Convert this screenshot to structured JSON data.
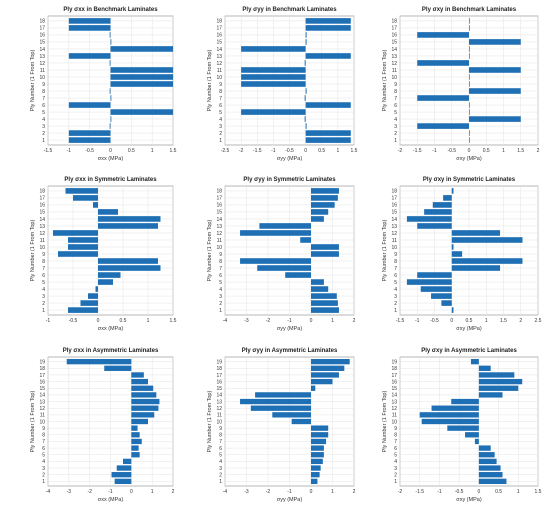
{
  "figure": {
    "ylabel": "Ply Number (1 From Top)",
    "grid": true,
    "bar_color": "#1f6fb4"
  },
  "chart_data": [
    {
      "type": "bar",
      "orientation": "horizontal",
      "title": "Ply σxx in Benchmark Laminates",
      "xlabel": "σxx (MPa)",
      "ylabel": "Ply Number (1 From Top)",
      "plies": [
        1,
        2,
        3,
        4,
        5,
        6,
        7,
        8,
        9,
        10,
        11,
        12,
        13,
        14,
        15,
        16,
        17,
        18
      ],
      "values": [
        -1,
        -1,
        -0.02,
        0.02,
        1.5,
        -1,
        0.02,
        -0.02,
        1.5,
        1.5,
        1.5,
        -0.02,
        -1,
        1.5,
        0.02,
        -0.02,
        -1,
        -1
      ],
      "xlim": [
        -1.5,
        1.5
      ],
      "xticks": [
        -1.5,
        -1,
        -0.5,
        0,
        0.5,
        1,
        1.5
      ]
    },
    {
      "type": "bar",
      "orientation": "horizontal",
      "title": "Ply σyy in Benchmark Laminates",
      "xlabel": "σyy (MPa)",
      "ylabel": "Ply Number (1 From Top)",
      "plies": [
        1,
        2,
        3,
        4,
        5,
        6,
        7,
        8,
        9,
        10,
        11,
        12,
        13,
        14,
        15,
        16,
        17,
        18
      ],
      "values": [
        1.4,
        1.4,
        0.03,
        -0.03,
        -2,
        1.4,
        -0.03,
        0.03,
        -2,
        -2,
        -2,
        -0.03,
        1.4,
        -2,
        0.03,
        0.03,
        1.4,
        1.4
      ],
      "xlim": [
        -2.5,
        1.5
      ],
      "xticks": [
        -2.5,
        -2,
        -1.5,
        -1,
        -0.5,
        0,
        0.5,
        1,
        1.5
      ]
    },
    {
      "type": "bar",
      "orientation": "horizontal",
      "title": "Ply σxy in Benchmark Laminates",
      "xlabel": "σxy (MPa)",
      "ylabel": "Ply Number (1 From Top)",
      "plies": [
        1,
        2,
        3,
        4,
        5,
        6,
        7,
        8,
        9,
        10,
        11,
        12,
        13,
        14,
        15,
        16,
        17,
        18
      ],
      "values": [
        0.02,
        0.02,
        -1.5,
        1.5,
        0.02,
        0.02,
        -1.5,
        1.5,
        0.02,
        0.02,
        1.5,
        -1.5,
        0.02,
        0.02,
        1.5,
        -1.5,
        0.02,
        0.02
      ],
      "xlim": [
        -2,
        2
      ],
      "xticks": [
        -2,
        -1.5,
        -1,
        -0.5,
        0,
        0.5,
        1,
        1.5,
        2
      ]
    },
    {
      "type": "bar",
      "orientation": "horizontal",
      "title": "Ply σxx in Symmetric Laminates",
      "xlabel": "σxx (MPa)",
      "ylabel": "Ply Number (1 From Top)",
      "plies": [
        1,
        2,
        3,
        4,
        5,
        6,
        7,
        8,
        9,
        10,
        11,
        12,
        13,
        14,
        15,
        16,
        17,
        18
      ],
      "values": [
        -0.6,
        -0.35,
        -0.2,
        -0.05,
        0.3,
        0.45,
        1.25,
        1.2,
        -0.8,
        -0.6,
        -0.6,
        -0.9,
        1.2,
        1.25,
        0.4,
        -0.1,
        -0.5,
        -0.65
      ],
      "xlim": [
        -1,
        1.5
      ],
      "xticks": [
        -1,
        -0.5,
        0,
        0.5,
        1,
        1.5
      ]
    },
    {
      "type": "bar",
      "orientation": "horizontal",
      "title": "Ply σyy in Symmetric Laminates",
      "xlabel": "σyy (MPa)",
      "ylabel": "Ply Number (1 From Top)",
      "plies": [
        1,
        2,
        3,
        4,
        5,
        6,
        7,
        8,
        9,
        10,
        11,
        12,
        13,
        14,
        15,
        16,
        17,
        18
      ],
      "values": [
        1.3,
        1.25,
        1.2,
        0.8,
        0.6,
        -1.2,
        -2.5,
        -3.3,
        1.3,
        1.3,
        -0.5,
        -3.3,
        -2.4,
        0.6,
        0.8,
        1.1,
        1.25,
        1.3
      ],
      "xlim": [
        -4,
        2
      ],
      "xticks": [
        -4,
        -3,
        -2,
        -1,
        0,
        1,
        2
      ]
    },
    {
      "type": "bar",
      "orientation": "horizontal",
      "title": "Ply σxy in Symmetric Laminates",
      "xlabel": "σxy (MPa)",
      "ylabel": "Ply Number (1 From Top)",
      "plies": [
        1,
        2,
        3,
        4,
        5,
        6,
        7,
        8,
        9,
        10,
        11,
        12,
        13,
        14,
        15,
        16,
        17,
        18
      ],
      "values": [
        0.05,
        -0.3,
        -0.6,
        -0.9,
        -1.3,
        -1.0,
        1.4,
        2.05,
        0.3,
        0.05,
        2.05,
        1.4,
        -1.0,
        -1.3,
        -0.8,
        -0.55,
        -0.25,
        0.05
      ],
      "xlim": [
        -1.5,
        2.5
      ],
      "xticks": [
        -1.5,
        -1,
        -0.5,
        0,
        0.5,
        1,
        1.5,
        2,
        2.5
      ]
    },
    {
      "type": "bar",
      "orientation": "horizontal",
      "title": "Ply σxx in Asymmetric Laminates",
      "xlabel": "σxx (MPa)",
      "ylabel": "Ply Number (1 From Top)",
      "plies": [
        1,
        2,
        3,
        4,
        5,
        6,
        7,
        8,
        9,
        10,
        11,
        12,
        13,
        14,
        15,
        16,
        17,
        18,
        19
      ],
      "values": [
        -0.8,
        -0.95,
        -0.7,
        -0.4,
        0.4,
        0.35,
        0.5,
        0.4,
        0.3,
        0.8,
        1.1,
        1.3,
        1.35,
        1.2,
        1.05,
        0.8,
        0.6,
        -1.3,
        -3.1
      ],
      "xlim": [
        -4,
        2
      ],
      "xticks": [
        -4,
        -3,
        -2,
        -1,
        0,
        1,
        2
      ]
    },
    {
      "type": "bar",
      "orientation": "horizontal",
      "title": "Ply σyy in Asymmetric Laminates",
      "xlabel": "σyy (MPa)",
      "ylabel": "Ply Number (1 From Top)",
      "plies": [
        1,
        2,
        3,
        4,
        5,
        6,
        7,
        8,
        9,
        10,
        11,
        12,
        13,
        14,
        15,
        16,
        17,
        18,
        19
      ],
      "values": [
        0.3,
        0.4,
        0.45,
        0.55,
        0.6,
        0.6,
        0.7,
        0.8,
        0.8,
        -0.9,
        -1.8,
        -2.8,
        -3.3,
        -2.6,
        0.2,
        1.0,
        1.3,
        1.55,
        1.8
      ],
      "xlim": [
        -4,
        2
      ],
      "xticks": [
        -4,
        -3,
        -2,
        -1,
        0,
        1,
        2
      ]
    },
    {
      "type": "bar",
      "orientation": "horizontal",
      "title": "Ply σxy in Asymmetric Laminates",
      "xlabel": "σxy (MPa)",
      "ylabel": "Ply Number (1 From Top)",
      "plies": [
        1,
        2,
        3,
        4,
        5,
        6,
        7,
        8,
        9,
        10,
        11,
        12,
        13,
        14,
        15,
        16,
        17,
        18,
        19
      ],
      "values": [
        0.7,
        0.6,
        0.55,
        0.45,
        0.4,
        0.3,
        -0.1,
        -0.35,
        -0.8,
        -1.45,
        -1.5,
        -1.2,
        -0.7,
        0.6,
        1.0,
        1.1,
        0.9,
        0.3,
        -0.2
      ],
      "xlim": [
        -2,
        1.5
      ],
      "xticks": [
        -2,
        -1.5,
        -1,
        -0.5,
        0,
        0.5,
        1,
        1.5
      ]
    }
  ]
}
